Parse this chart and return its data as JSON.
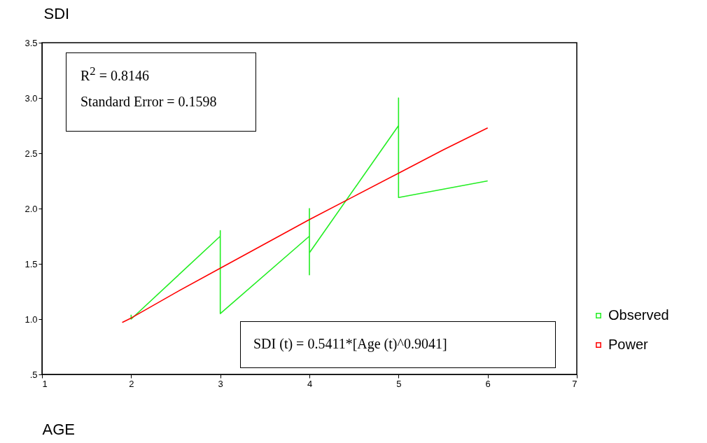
{
  "chart_data": {
    "type": "line",
    "xlabel": "AGE",
    "ylabel": "SDI",
    "xlim": [
      1,
      7
    ],
    "xticks": [
      1,
      2,
      3,
      4,
      5,
      6,
      7
    ],
    "ylim": [
      0.5,
      3.5
    ],
    "yticks": [
      {
        "value": 0.5,
        "label": ".5"
      },
      {
        "value": 1,
        "label": "1.0"
      },
      {
        "value": 1.5,
        "label": "1.5"
      },
      {
        "value": 2,
        "label": "2.0"
      },
      {
        "value": 2.5,
        "label": "2.5"
      },
      {
        "value": 3,
        "label": "3.0"
      },
      {
        "value": 3.5,
        "label": "3.5"
      }
    ],
    "series": [
      {
        "name": "Observed",
        "color": "#22ee22",
        "x": [
          2,
          2,
          3,
          3,
          3,
          4,
          4,
          4,
          4,
          5,
          5,
          5,
          6
        ],
        "values": [
          1.04,
          1.0,
          1.75,
          1.8,
          1.05,
          1.75,
          2.0,
          1.4,
          1.6,
          2.75,
          3.0,
          2.1,
          2.25
        ]
      },
      {
        "name": "Power",
        "color": "#ff0000",
        "x": [
          1.9,
          2,
          2.5,
          3,
          3.5,
          4,
          4.5,
          5,
          5.5,
          6
        ],
        "values": [
          0.97,
          1.01,
          1.24,
          1.46,
          1.68,
          1.9,
          2.11,
          2.32,
          2.53,
          2.73
        ]
      }
    ],
    "annotations": [
      "R$^{2}$ = 0.8146",
      "Standard Error = 0.1598",
      "SDI (t) = 0.5411*[Age (t)^0.9041]"
    ],
    "legend": "right",
    "marker": "none",
    "line_style": "solid",
    "grid": false
  }
}
